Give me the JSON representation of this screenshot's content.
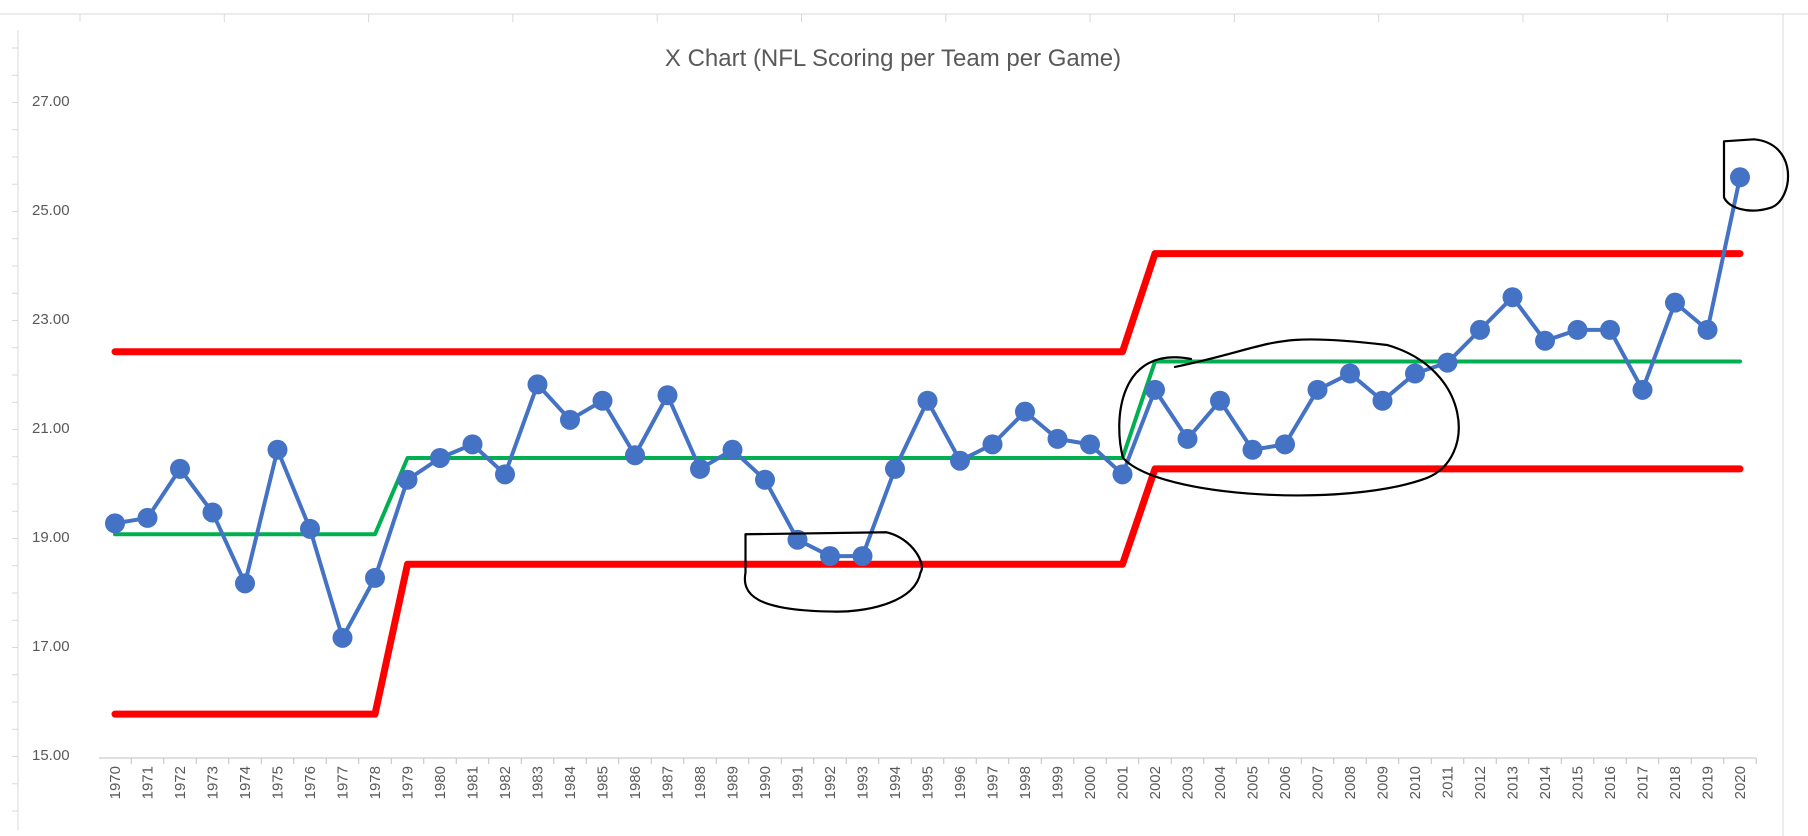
{
  "chart_data": {
    "type": "line",
    "title": "X Chart (NFL Scoring per Team per Game)",
    "xlabel": "",
    "ylabel": "",
    "ylim": [
      15,
      27.5
    ],
    "y_ticks": [
      "15.00",
      "17.00",
      "19.00",
      "21.00",
      "23.00",
      "25.00",
      "27.00"
    ],
    "y_tick_values": [
      15,
      17,
      19,
      21,
      23,
      25,
      27
    ],
    "grid": false,
    "x": [
      "1970",
      "1971",
      "1972",
      "1973",
      "1974",
      "1975",
      "1976",
      "1977",
      "1978",
      "1979",
      "1980",
      "1981",
      "1982",
      "1983",
      "1984",
      "1985",
      "1986",
      "1987",
      "1988",
      "1989",
      "1990",
      "1991",
      "1992",
      "1993",
      "1994",
      "1995",
      "1996",
      "1997",
      "1998",
      "1999",
      "2000",
      "2001",
      "2002",
      "2003",
      "2004",
      "2005",
      "2006",
      "2007",
      "2008",
      "2009",
      "2010",
      "2011",
      "2012",
      "2013",
      "2014",
      "2015",
      "2016",
      "2017",
      "2018",
      "2019",
      "2020"
    ],
    "series": [
      {
        "role": "data",
        "color": "#4472C4",
        "values": [
          19.25,
          19.35,
          20.25,
          19.45,
          18.15,
          20.6,
          19.15,
          17.15,
          18.25,
          20.05,
          20.45,
          20.7,
          20.15,
          21.8,
          21.15,
          21.5,
          20.5,
          21.6,
          20.25,
          20.6,
          20.05,
          18.95,
          18.65,
          18.65,
          20.25,
          21.5,
          20.4,
          20.7,
          21.3,
          20.8,
          20.7,
          20.15,
          21.7,
          20.8,
          21.5,
          20.6,
          20.7,
          21.7,
          22.0,
          21.5,
          22.0,
          22.2,
          22.8,
          23.4,
          22.6,
          22.8,
          22.8,
          21.7,
          23.3,
          22.8,
          25.6
        ]
      },
      {
        "role": "average",
        "color": "#00B050",
        "values": [
          19.05,
          19.05,
          19.05,
          19.05,
          19.05,
          19.05,
          19.05,
          19.05,
          19.05,
          20.45,
          20.45,
          20.45,
          20.45,
          20.45,
          20.45,
          20.45,
          20.45,
          20.45,
          20.45,
          20.45,
          20.45,
          20.45,
          20.45,
          20.45,
          20.45,
          20.45,
          20.45,
          20.45,
          20.45,
          20.45,
          20.45,
          20.45,
          22.22,
          22.22,
          22.22,
          22.22,
          22.22,
          22.22,
          22.22,
          22.22,
          22.22,
          22.22,
          22.22,
          22.22,
          22.22,
          22.22,
          22.22,
          22.22,
          22.22,
          22.22,
          22.22
        ]
      },
      {
        "role": "upper-limit",
        "color": "#FF0000",
        "values": [
          22.4,
          22.4,
          22.4,
          22.4,
          22.4,
          22.4,
          22.4,
          22.4,
          22.4,
          22.4,
          22.4,
          22.4,
          22.4,
          22.4,
          22.4,
          22.4,
          22.4,
          22.4,
          22.4,
          22.4,
          22.4,
          22.4,
          22.4,
          22.4,
          22.4,
          22.4,
          22.4,
          22.4,
          22.4,
          22.4,
          22.4,
          22.4,
          24.2,
          24.2,
          24.2,
          24.2,
          24.2,
          24.2,
          24.2,
          24.2,
          24.2,
          24.2,
          24.2,
          24.2,
          24.2,
          24.2,
          24.2,
          24.2,
          24.2,
          24.2,
          24.2
        ]
      },
      {
        "role": "lower-limit",
        "color": "#FF0000",
        "values": [
          15.75,
          15.75,
          15.75,
          15.75,
          15.75,
          15.75,
          15.75,
          15.75,
          15.75,
          18.5,
          18.5,
          18.5,
          18.5,
          18.5,
          18.5,
          18.5,
          18.5,
          18.5,
          18.5,
          18.5,
          18.5,
          18.5,
          18.5,
          18.5,
          18.5,
          18.5,
          18.5,
          18.5,
          18.5,
          18.5,
          18.5,
          18.5,
          20.25,
          20.25,
          20.25,
          20.25,
          20.25,
          20.25,
          20.25,
          20.25,
          20.25,
          20.25,
          20.25,
          20.25,
          20.25,
          20.25,
          20.25,
          20.25,
          20.25,
          20.25,
          20.25
        ]
      }
    ],
    "annotations": [
      {
        "shape": "hand-drawn-circle",
        "around_years": [
          "1991",
          "1993"
        ]
      },
      {
        "shape": "hand-drawn-circle",
        "around_years": [
          "2002",
          "2010"
        ]
      },
      {
        "shape": "hand-drawn-circle",
        "around_years": [
          "2020",
          "2020"
        ]
      }
    ]
  }
}
